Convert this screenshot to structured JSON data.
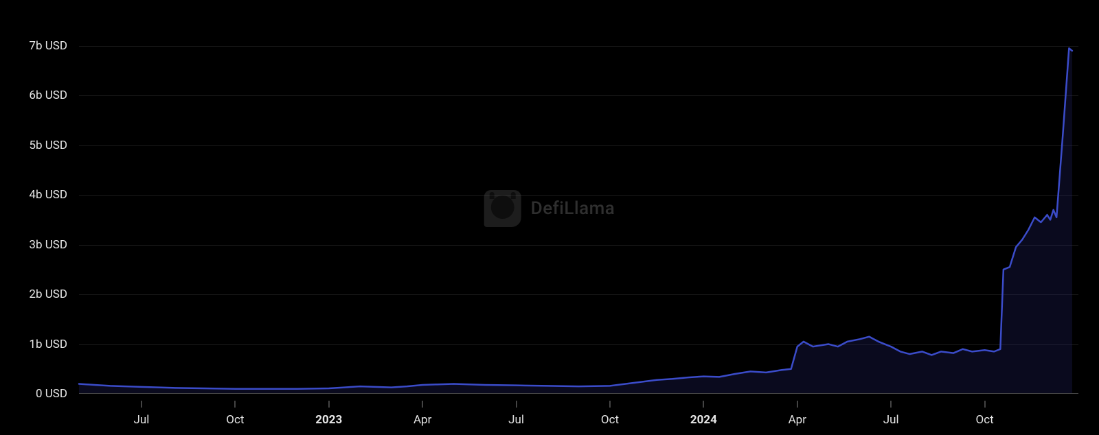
{
  "chart": {
    "type": "area",
    "background_color": "#000000",
    "line_color": "#3b4cca",
    "line_width": 2.5,
    "fill_color": "rgba(40,40,120,0.25)",
    "grid_color": "#1a1a1a",
    "axis_text_color": "#e5e5e5",
    "axis_font_size": 17,
    "watermark_text": "DefiLlama",
    "watermark_color": "#888888",
    "y_axis": {
      "label_suffix": " USD",
      "ticks": [
        {
          "value": 0,
          "label": "0 USD"
        },
        {
          "value": 1,
          "label": "1b USD"
        },
        {
          "value": 2,
          "label": "2b USD"
        },
        {
          "value": 3,
          "label": "3b USD"
        },
        {
          "value": 4,
          "label": "4b USD"
        },
        {
          "value": 5,
          "label": "5b USD"
        },
        {
          "value": 6,
          "label": "6b USD"
        },
        {
          "value": 7,
          "label": "7b USD"
        }
      ],
      "min": 0,
      "max": 7.3
    },
    "x_axis": {
      "min": 0,
      "max": 32,
      "ticks": [
        {
          "pos": 2,
          "label": "Jul",
          "bold": false
        },
        {
          "pos": 5,
          "label": "Oct",
          "bold": false
        },
        {
          "pos": 8,
          "label": "2023",
          "bold": true
        },
        {
          "pos": 11,
          "label": "Apr",
          "bold": false
        },
        {
          "pos": 14,
          "label": "Jul",
          "bold": false
        },
        {
          "pos": 17,
          "label": "Oct",
          "bold": false
        },
        {
          "pos": 20,
          "label": "2024",
          "bold": true
        },
        {
          "pos": 23,
          "label": "Apr",
          "bold": false
        },
        {
          "pos": 26,
          "label": "Jul",
          "bold": false
        },
        {
          "pos": 29,
          "label": "Oct",
          "bold": false
        }
      ]
    },
    "series": [
      {
        "x": 0.0,
        "y": 0.2
      },
      {
        "x": 0.5,
        "y": 0.18
      },
      {
        "x": 1.0,
        "y": 0.16
      },
      {
        "x": 2.0,
        "y": 0.14
      },
      {
        "x": 3.0,
        "y": 0.12
      },
      {
        "x": 4.0,
        "y": 0.11
      },
      {
        "x": 5.0,
        "y": 0.1
      },
      {
        "x": 6.0,
        "y": 0.1
      },
      {
        "x": 7.0,
        "y": 0.1
      },
      {
        "x": 8.0,
        "y": 0.11
      },
      {
        "x": 8.5,
        "y": 0.13
      },
      {
        "x": 9.0,
        "y": 0.15
      },
      {
        "x": 9.5,
        "y": 0.14
      },
      {
        "x": 10.0,
        "y": 0.13
      },
      {
        "x": 10.5,
        "y": 0.15
      },
      {
        "x": 11.0,
        "y": 0.18
      },
      {
        "x": 11.5,
        "y": 0.19
      },
      {
        "x": 12.0,
        "y": 0.2
      },
      {
        "x": 12.5,
        "y": 0.19
      },
      {
        "x": 13.0,
        "y": 0.18
      },
      {
        "x": 14.0,
        "y": 0.17
      },
      {
        "x": 15.0,
        "y": 0.16
      },
      {
        "x": 16.0,
        "y": 0.15
      },
      {
        "x": 17.0,
        "y": 0.16
      },
      {
        "x": 17.5,
        "y": 0.2
      },
      {
        "x": 18.0,
        "y": 0.24
      },
      {
        "x": 18.5,
        "y": 0.28
      },
      {
        "x": 19.0,
        "y": 0.3
      },
      {
        "x": 19.5,
        "y": 0.33
      },
      {
        "x": 20.0,
        "y": 0.35
      },
      {
        "x": 20.5,
        "y": 0.34
      },
      {
        "x": 21.0,
        "y": 0.4
      },
      {
        "x": 21.5,
        "y": 0.45
      },
      {
        "x": 22.0,
        "y": 0.43
      },
      {
        "x": 22.5,
        "y": 0.48
      },
      {
        "x": 22.8,
        "y": 0.5
      },
      {
        "x": 23.0,
        "y": 0.95
      },
      {
        "x": 23.2,
        "y": 1.05
      },
      {
        "x": 23.5,
        "y": 0.95
      },
      {
        "x": 24.0,
        "y": 1.0
      },
      {
        "x": 24.3,
        "y": 0.95
      },
      {
        "x": 24.6,
        "y": 1.05
      },
      {
        "x": 25.0,
        "y": 1.1
      },
      {
        "x": 25.3,
        "y": 1.15
      },
      {
        "x": 25.6,
        "y": 1.05
      },
      {
        "x": 26.0,
        "y": 0.95
      },
      {
        "x": 26.3,
        "y": 0.85
      },
      {
        "x": 26.6,
        "y": 0.8
      },
      {
        "x": 27.0,
        "y": 0.85
      },
      {
        "x": 27.3,
        "y": 0.78
      },
      {
        "x": 27.6,
        "y": 0.85
      },
      {
        "x": 28.0,
        "y": 0.82
      },
      {
        "x": 28.3,
        "y": 0.9
      },
      {
        "x": 28.6,
        "y": 0.85
      },
      {
        "x": 29.0,
        "y": 0.88
      },
      {
        "x": 29.3,
        "y": 0.85
      },
      {
        "x": 29.5,
        "y": 0.9
      },
      {
        "x": 29.6,
        "y": 2.5
      },
      {
        "x": 29.8,
        "y": 2.55
      },
      {
        "x": 30.0,
        "y": 2.95
      },
      {
        "x": 30.2,
        "y": 3.1
      },
      {
        "x": 30.4,
        "y": 3.3
      },
      {
        "x": 30.6,
        "y": 3.55
      },
      {
        "x": 30.8,
        "y": 3.45
      },
      {
        "x": 31.0,
        "y": 3.6
      },
      {
        "x": 31.1,
        "y": 3.5
      },
      {
        "x": 31.2,
        "y": 3.7
      },
      {
        "x": 31.3,
        "y": 3.55
      },
      {
        "x": 31.5,
        "y": 5.2
      },
      {
        "x": 31.7,
        "y": 6.95
      },
      {
        "x": 31.8,
        "y": 6.9
      }
    ]
  }
}
